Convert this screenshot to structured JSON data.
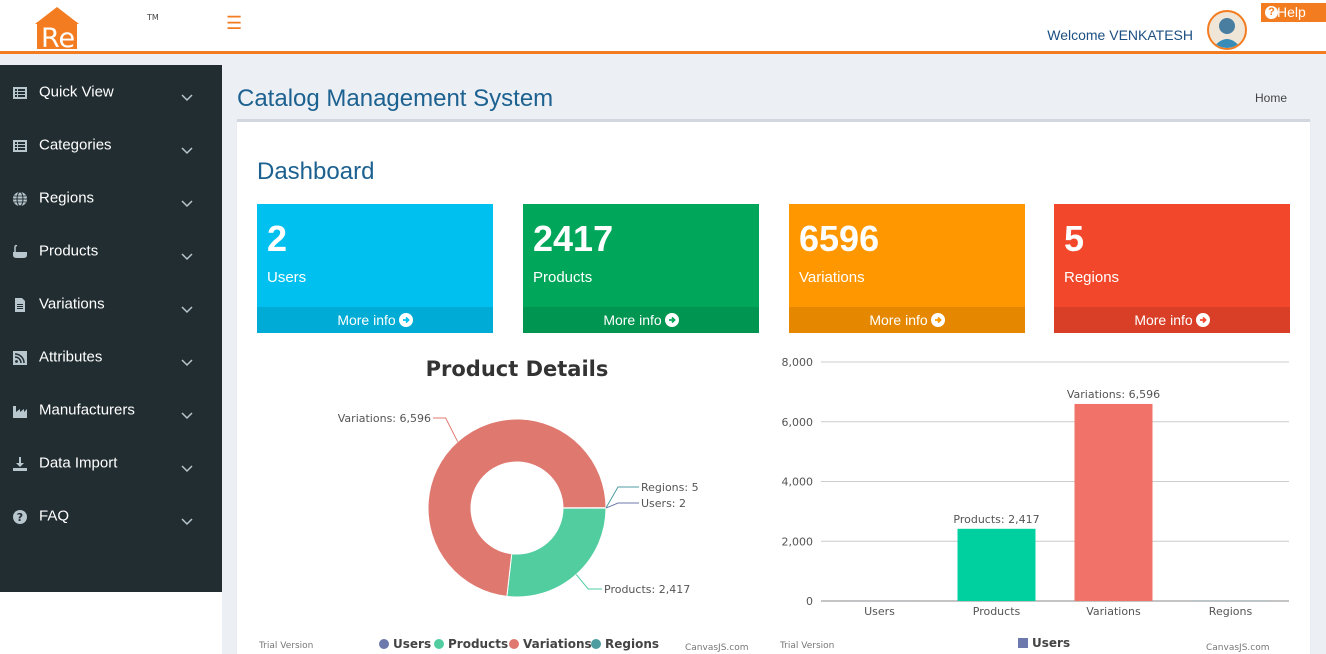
{
  "header": {
    "logo_text": "ReMAP",
    "logo_tm": "TM",
    "welcome": "Welcome VENKATESH",
    "help_label": "Help"
  },
  "sidebar": {
    "items": [
      {
        "label": "Quick View",
        "icon": "list-icon"
      },
      {
        "label": "Categories",
        "icon": "list-icon"
      },
      {
        "label": "Regions",
        "icon": "globe-icon"
      },
      {
        "label": "Products",
        "icon": "bathtub-icon"
      },
      {
        "label": "Variations",
        "icon": "file-icon"
      },
      {
        "label": "Attributes",
        "icon": "rss-icon"
      },
      {
        "label": "Manufacturers",
        "icon": "industry-icon"
      },
      {
        "label": "Data Import",
        "icon": "download-icon"
      },
      {
        "label": "FAQ",
        "icon": "question-icon"
      }
    ]
  },
  "main": {
    "title": "Catalog Management System",
    "breadcrumb": "Home",
    "dashboard_title": "Dashboard"
  },
  "cards": [
    {
      "number": "2",
      "caption": "Users",
      "more": "More info",
      "color": "#00c0ef"
    },
    {
      "number": "2417",
      "caption": "Products",
      "more": "More info",
      "color": "#00a65a"
    },
    {
      "number": "6596",
      "caption": "Variations",
      "more": "More info",
      "color": "#ff9800"
    },
    {
      "number": "5",
      "caption": "Regions",
      "more": "More info",
      "color": "#f2472b"
    }
  ],
  "chart_data": [
    {
      "type": "pie",
      "subtype": "doughnut",
      "title": "Product Details",
      "categories": [
        "Users",
        "Products",
        "Variations",
        "Regions"
      ],
      "values": [
        2,
        2417,
        6596,
        5
      ],
      "labels": [
        "Users: 2",
        "Products: 2,417",
        "Variations: 6,596",
        "Regions: 5"
      ],
      "colors": [
        "#6d78ad",
        "#51cda0",
        "#df7970",
        "#4c9ca0"
      ],
      "legend": "bottom",
      "trial_text": "Trial Version",
      "credit_text": "CanvasJS.com"
    },
    {
      "type": "bar",
      "title": "",
      "categories": [
        "Users",
        "Products",
        "Variations",
        "Regions"
      ],
      "values": [
        2,
        2417,
        6596,
        5
      ],
      "data_labels": [
        "",
        "Products: 2,417",
        "Variations: 6,596",
        ""
      ],
      "colors": [
        "#6d78ad",
        "#00d0a0",
        "#f17268",
        "#4c9ca0"
      ],
      "y_ticks": [
        "0",
        "2,000",
        "4,000",
        "6,000",
        "8,000"
      ],
      "ylim": [
        0,
        8000
      ],
      "grid": true,
      "legend": "bottom",
      "legend_entries": [
        "Users"
      ],
      "legend_color": "#6d78ad",
      "trial_text": "Trial Version",
      "credit_text": "CanvasJS.com"
    }
  ]
}
